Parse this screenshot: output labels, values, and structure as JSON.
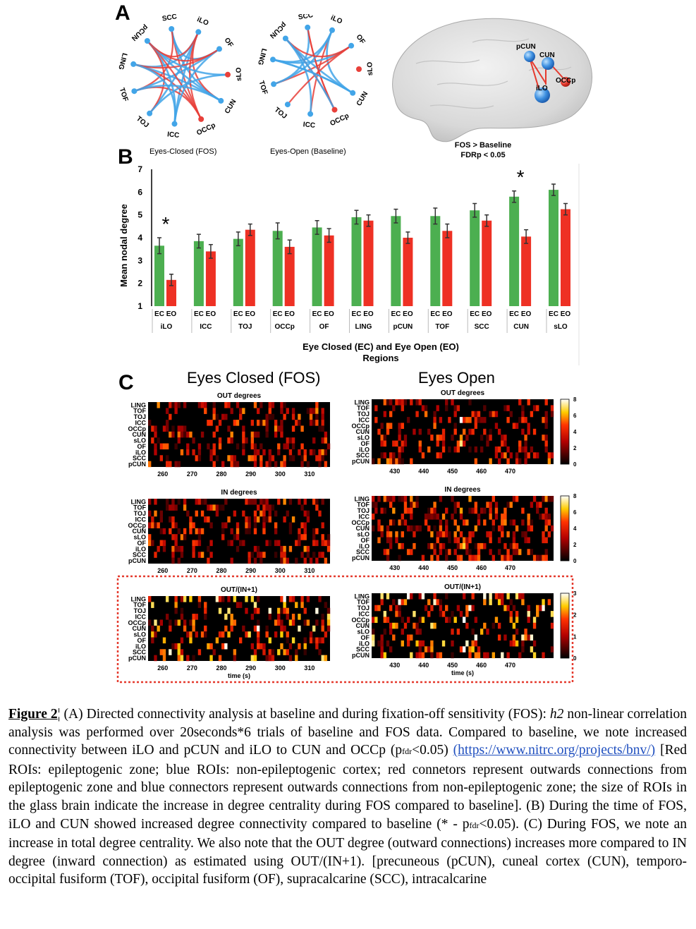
{
  "panel_labels": {
    "a": "A",
    "b": "B",
    "c": "C"
  },
  "panel_a": {
    "graphs": [
      {
        "title": "Eyes-Closed (FOS)",
        "nodes": [
          "SCC",
          "iLO",
          "OF",
          "sLO",
          "CUN",
          "OCCp",
          "ICC",
          "TOJ",
          "TOF",
          "LING",
          "pCUN"
        ]
      },
      {
        "title": "Eyes-Open (Baseline)",
        "nodes": [
          "SCC",
          "iLO",
          "OF",
          "sLO",
          "CUN",
          "OCCp",
          "ICC",
          "TOJ",
          "TOF",
          "LING",
          "pCUN"
        ]
      }
    ],
    "red_nodes": [
      "sLO",
      "OCCp"
    ],
    "brain": {
      "labels": [
        "pCUN",
        "CUN",
        "iLO",
        "OCCp"
      ],
      "note_line1": "FOS > Baseline",
      "note_line2": "FDRp < 0.05"
    },
    "colors": {
      "blue": "#42a5e8",
      "red": "#e8403a"
    }
  },
  "chart_data": {
    "type": "bar",
    "title": "",
    "xlabel": "Eye Closed (EC) and Eye Open (EO)",
    "xlabel2": "Regions",
    "ylabel": "Mean nodal degree",
    "ylim": [
      1,
      7
    ],
    "yticks": [
      "1",
      "2",
      "3",
      "4",
      "5",
      "6",
      "7"
    ],
    "categories": [
      "iLO",
      "ICC",
      "TOJ",
      "OCCp",
      "OF",
      "LING",
      "pCUN",
      "TOF",
      "SCC",
      "CUN",
      "sLO"
    ],
    "bar_labels": [
      "EC",
      "EO"
    ],
    "series": [
      {
        "name": "EC",
        "color": "#4caf50",
        "values": [
          3.65,
          3.85,
          3.95,
          4.3,
          4.45,
          4.9,
          4.95,
          4.95,
          5.2,
          5.8,
          6.1
        ],
        "errors": [
          0.35,
          0.3,
          0.3,
          0.35,
          0.3,
          0.3,
          0.3,
          0.35,
          0.3,
          0.25,
          0.25
        ]
      },
      {
        "name": "EO",
        "color": "#ee3124",
        "values": [
          2.15,
          3.4,
          4.35,
          3.6,
          4.1,
          4.75,
          4.0,
          4.3,
          4.75,
          4.05,
          5.25
        ],
        "errors": [
          0.25,
          0.3,
          0.25,
          0.3,
          0.3,
          0.25,
          0.25,
          0.3,
          0.25,
          0.3,
          0.25
        ]
      }
    ],
    "significant": [
      "iLO",
      "CUN"
    ],
    "star": "*"
  },
  "panel_c": {
    "col_titles": [
      "Eyes Closed (FOS)",
      "Eyes Open"
    ],
    "row_labels": [
      "LING",
      "TOF",
      "TOJ",
      "ICC",
      "OCCp",
      "CUN",
      "sLO",
      "OF",
      "iLO",
      "SCC",
      "pCUN"
    ],
    "rows": [
      {
        "title": "OUT degrees",
        "colorbar_ticks": [
          "8",
          "6",
          "4",
          "2",
          "0"
        ]
      },
      {
        "title": "IN degrees",
        "colorbar_ticks": [
          "8",
          "6",
          "4",
          "2",
          "0"
        ]
      },
      {
        "title": "OUT/(IN+1)",
        "colorbar_ticks": [
          "3",
          "2",
          "1",
          "0"
        ]
      }
    ],
    "xticks_closed": [
      "260",
      "270",
      "280",
      "290",
      "300",
      "310"
    ],
    "xticks_open": [
      "430",
      "440",
      "450",
      "460",
      "470"
    ],
    "time_label": "time (s)"
  },
  "caption": {
    "label": "Figure 2",
    "cursor": "¦",
    "p1": " (A) Directed connectivity analysis at baseline and during fixation-off sensitivity (FOS): ",
    "h2": "h2",
    "p2": " non-linear correlation analysis was performed over 20seconds*6 trials of baseline and FOS data. Compared to baseline, we note increased connectivity between iLO and pCUN and iLO to CUN and OCCp (p",
    "sub1": "fdr",
    "p3": "<0.05) ",
    "link": "(https://www.nitrc.org/projects/bnv/)",
    "p4": " [Red ROIs: epileptogenic zone; blue ROIs: non-epileptogenic cortex; red connetors represent outwards connections from epileptogenic zone and blue connectors represent outwards connections from non-epileptogenic zone; the size of ROIs in the glass brain indicate the increase in degree centrality during FOS compared to baseline]. (B) During the time of FOS, iLO and CUN showed increased degree connectivity compared to baseline (* - p",
    "sub2": "fdr",
    "p5": "<0.05). (C) During FOS, we note an increase in total degree centrality. We also note that the OUT degree (outward connections) increases more compared to IN degree (inward connection) as estimated using OUT/(IN+1). [precuneous (pCUN), cuneal cortex (CUN), temporo-occipital fusiform (TOF), occipital fusiform (OF), supracalcarine (SCC), intracalcarine"
  }
}
